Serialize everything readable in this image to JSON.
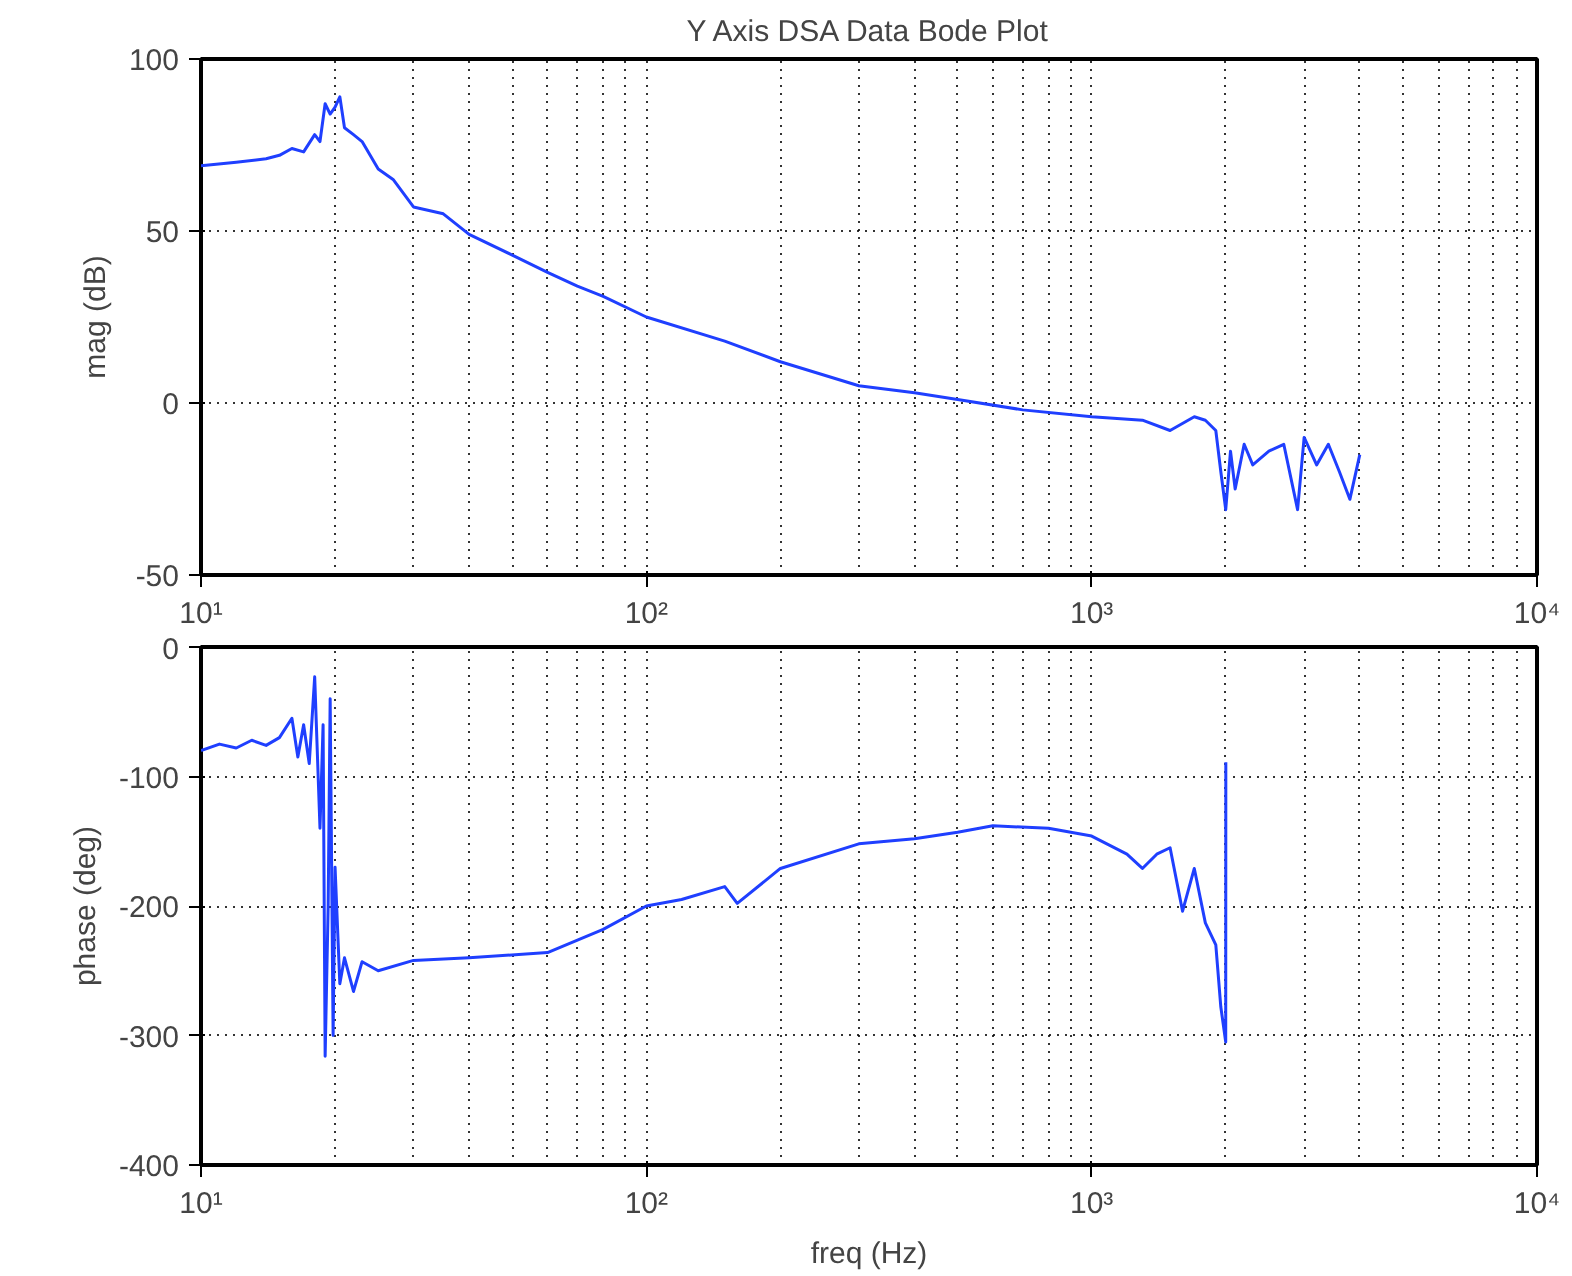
{
  "chart_data": [
    {
      "type": "line",
      "title": "Y Axis DSA Data Bode Plot",
      "ylabel": "mag (dB)",
      "log": "x",
      "grid": true,
      "xlim": [
        10,
        10000
      ],
      "xticks": [
        {
          "value": 10,
          "label": "10¹"
        },
        {
          "value": 100,
          "label": "10²"
        },
        {
          "value": 1000,
          "label": "10³"
        },
        {
          "value": 10000,
          "label": "10⁴"
        }
      ],
      "ylim": [
        -50,
        100
      ],
      "yticks": [
        -50,
        0,
        50,
        100
      ],
      "series": [
        {
          "color": "#1f3fff",
          "x": [
            10,
            12,
            14,
            15,
            16,
            17,
            18,
            18.5,
            19,
            19.5,
            20,
            20.5,
            21,
            22,
            23,
            25,
            27,
            30,
            35,
            40,
            50,
            60,
            70,
            80,
            100,
            150,
            200,
            300,
            400,
            500,
            700,
            1000,
            1300,
            1500,
            1700,
            1800,
            1900,
            1950,
            2000,
            2050,
            2100,
            2200,
            2300,
            2500,
            2700,
            2900,
            3000,
            3200,
            3400,
            3600,
            3800,
            4000
          ],
          "values": [
            69,
            70,
            71,
            72,
            74,
            73,
            78,
            76,
            87,
            84,
            86,
            89,
            80,
            78,
            76,
            68,
            65,
            57,
            55,
            49,
            43,
            38,
            34,
            31,
            25,
            18,
            12,
            5,
            3,
            1,
            -2,
            -4,
            -5,
            -8,
            -4,
            -5,
            -8,
            -20,
            -31,
            -14,
            -25,
            -12,
            -18,
            -14,
            -12,
            -31,
            -10,
            -18,
            -12,
            -20,
            -28,
            -15
          ]
        }
      ]
    },
    {
      "type": "line",
      "xlabel": "freq (Hz)",
      "ylabel": "phase (deg)",
      "log": "x",
      "grid": true,
      "xlim": [
        10,
        10000
      ],
      "xticks": [
        {
          "value": 10,
          "label": "10¹"
        },
        {
          "value": 100,
          "label": "10²"
        },
        {
          "value": 1000,
          "label": "10³"
        },
        {
          "value": 10000,
          "label": "10⁴"
        }
      ],
      "ylim": [
        -400,
        0
      ],
      "yticks": [
        -400,
        -300,
        -200,
        -100,
        0
      ],
      "series": [
        {
          "color": "#1f3fff",
          "x": [
            10,
            11,
            12,
            13,
            14,
            15,
            16,
            16.5,
            17,
            17.5,
            18,
            18.5,
            18.8,
            19,
            19.3,
            19.5,
            19.8,
            20,
            20.5,
            21,
            22,
            23,
            25,
            30,
            40,
            60,
            80,
            100,
            120,
            150,
            160,
            200,
            300,
            400,
            500,
            600,
            800,
            1000,
            1200,
            1300,
            1400,
            1500,
            1600,
            1700,
            1800,
            1900,
            1950,
            2000,
            2001
          ],
          "values": [
            -80,
            -75,
            -78,
            -72,
            -76,
            -70,
            -55,
            -85,
            -60,
            -90,
            -23,
            -140,
            -60,
            -316,
            -200,
            -40,
            -300,
            -170,
            -260,
            -240,
            -266,
            -243,
            -250,
            -242,
            -240,
            -236,
            -218,
            -200,
            -195,
            -185,
            -198,
            -171,
            -152,
            -148,
            -143,
            -138,
            -140,
            -146,
            -160,
            -171,
            -160,
            -155,
            -204,
            -171,
            -213,
            -230,
            -278,
            -305,
            -89
          ]
        }
      ]
    }
  ]
}
